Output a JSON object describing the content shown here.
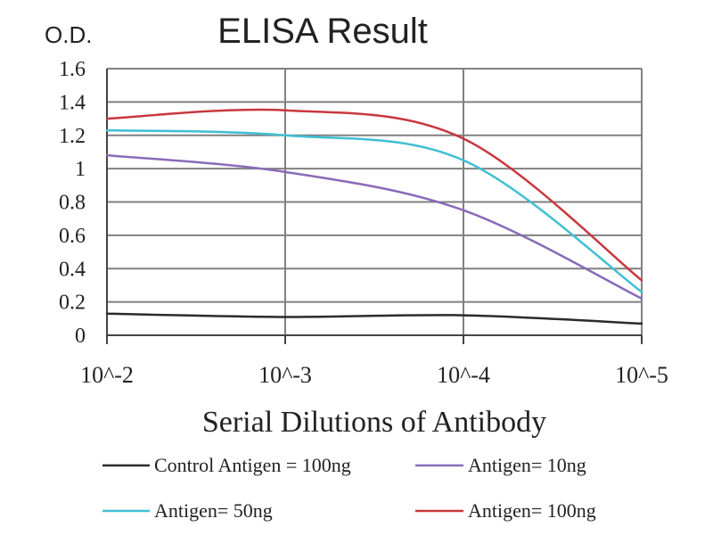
{
  "chart_data": {
    "type": "line",
    "title": "ELISA Result",
    "ylabel": "O.D.",
    "xlabel": "Serial Dilutions of Antibody",
    "categories": [
      "10^-2",
      "10^-3",
      "10^-4",
      "10^-5"
    ],
    "ylim": [
      0,
      1.6
    ],
    "yticks": [
      0,
      0.2,
      0.4,
      0.6,
      0.8,
      1,
      1.2,
      1.4,
      1.6
    ],
    "ytick_labels": [
      "0",
      "0.2",
      "0.4",
      "0.6",
      "0.8",
      "1",
      "1.2",
      "1.4",
      "1.6"
    ],
    "grid": true,
    "smooth": true,
    "legend_position": "bottom",
    "series": [
      {
        "name": "Control Antigen = 100ng",
        "color": "#2b2b2b",
        "values": [
          0.13,
          0.11,
          0.12,
          0.07
        ]
      },
      {
        "name": "Antigen= 10ng",
        "color": "#8a6bb8",
        "values": [
          1.08,
          0.98,
          0.75,
          0.22
        ]
      },
      {
        "name": "Antigen= 50ng",
        "color": "#3fbfd3",
        "values": [
          1.23,
          1.2,
          1.05,
          0.26
        ]
      },
      {
        "name": "Antigen= 100ng",
        "color": "#c8383e",
        "values": [
          1.3,
          1.35,
          1.18,
          0.33
        ]
      }
    ]
  }
}
